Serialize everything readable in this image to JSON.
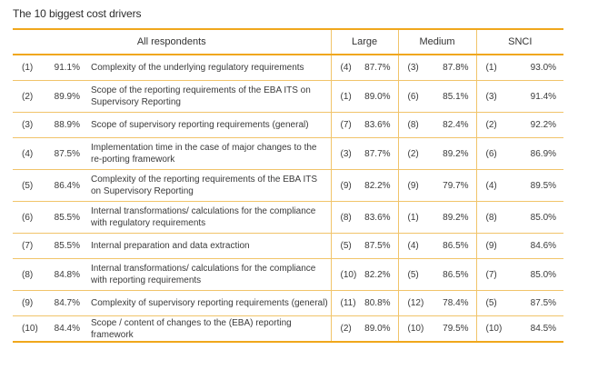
{
  "title": "The 10 biggest cost drivers",
  "headers": {
    "all": "All respondents",
    "large": "Large",
    "medium": "Medium",
    "snci": "SNCI"
  },
  "rows": [
    {
      "rank": "(1)",
      "pct": "91.1%",
      "desc": "Complexity of the underlying regulatory requirements",
      "lr": "(4)",
      "lp": "87.7%",
      "mr": "(3)",
      "mp": "87.8%",
      "sr": "(1)",
      "sp": "93.0%"
    },
    {
      "rank": "(2)",
      "pct": "89.9%",
      "desc": "Scope of the reporting requirements of the EBA ITS on Supervisory Reporting",
      "lr": "(1)",
      "lp": "89.0%",
      "mr": "(6)",
      "mp": "85.1%",
      "sr": "(3)",
      "sp": "91.4%"
    },
    {
      "rank": "(3)",
      "pct": "88.9%",
      "desc": "Scope of supervisory reporting requirements (general)",
      "lr": "(7)",
      "lp": "83.6%",
      "mr": "(8)",
      "mp": "82.4%",
      "sr": "(2)",
      "sp": "92.2%"
    },
    {
      "rank": "(4)",
      "pct": "87.5%",
      "desc": "Implementation time in the case of major changes to the re-porting framework",
      "lr": "(3)",
      "lp": "87.7%",
      "mr": "(2)",
      "mp": "89.2%",
      "sr": "(6)",
      "sp": "86.9%"
    },
    {
      "rank": "(5)",
      "pct": "86.4%",
      "desc": "Complexity of the reporting requirements of the EBA ITS on Supervisory Reporting",
      "lr": "(9)",
      "lp": "82.2%",
      "mr": "(9)",
      "mp": "79.7%",
      "sr": "(4)",
      "sp": "89.5%"
    },
    {
      "rank": "(6)",
      "pct": "85.5%",
      "desc": "Internal transformations/ calculations for the compliance with regulatory requirements",
      "lr": "(8)",
      "lp": "83.6%",
      "mr": "(1)",
      "mp": "89.2%",
      "sr": "(8)",
      "sp": "85.0%"
    },
    {
      "rank": "(7)",
      "pct": "85.5%",
      "desc": "Internal preparation and data extraction",
      "lr": "(5)",
      "lp": "87.5%",
      "mr": "(4)",
      "mp": "86.5%",
      "sr": "(9)",
      "sp": "84.6%"
    },
    {
      "rank": "(8)",
      "pct": "84.8%",
      "desc": "Internal transformations/ calculations for the compliance with reporting requirements",
      "lr": "(10)",
      "lp": "82.2%",
      "mr": "(5)",
      "mp": "86.5%",
      "sr": "(7)",
      "sp": "85.0%"
    },
    {
      "rank": "(9)",
      "pct": "84.7%",
      "desc": "Complexity of supervisory reporting requirements (general)",
      "lr": "(11)",
      "lp": "80.8%",
      "mr": "(12)",
      "mp": "78.4%",
      "sr": "(5)",
      "sp": "87.5%"
    },
    {
      "rank": "(10)",
      "pct": "84.4%",
      "desc": "Scope / content of changes to the (EBA) reporting framework",
      "lr": "(2)",
      "lp": "89.0%",
      "mr": "(10)",
      "mp": "79.5%",
      "sr": "(10)",
      "sp": "84.5%"
    }
  ]
}
